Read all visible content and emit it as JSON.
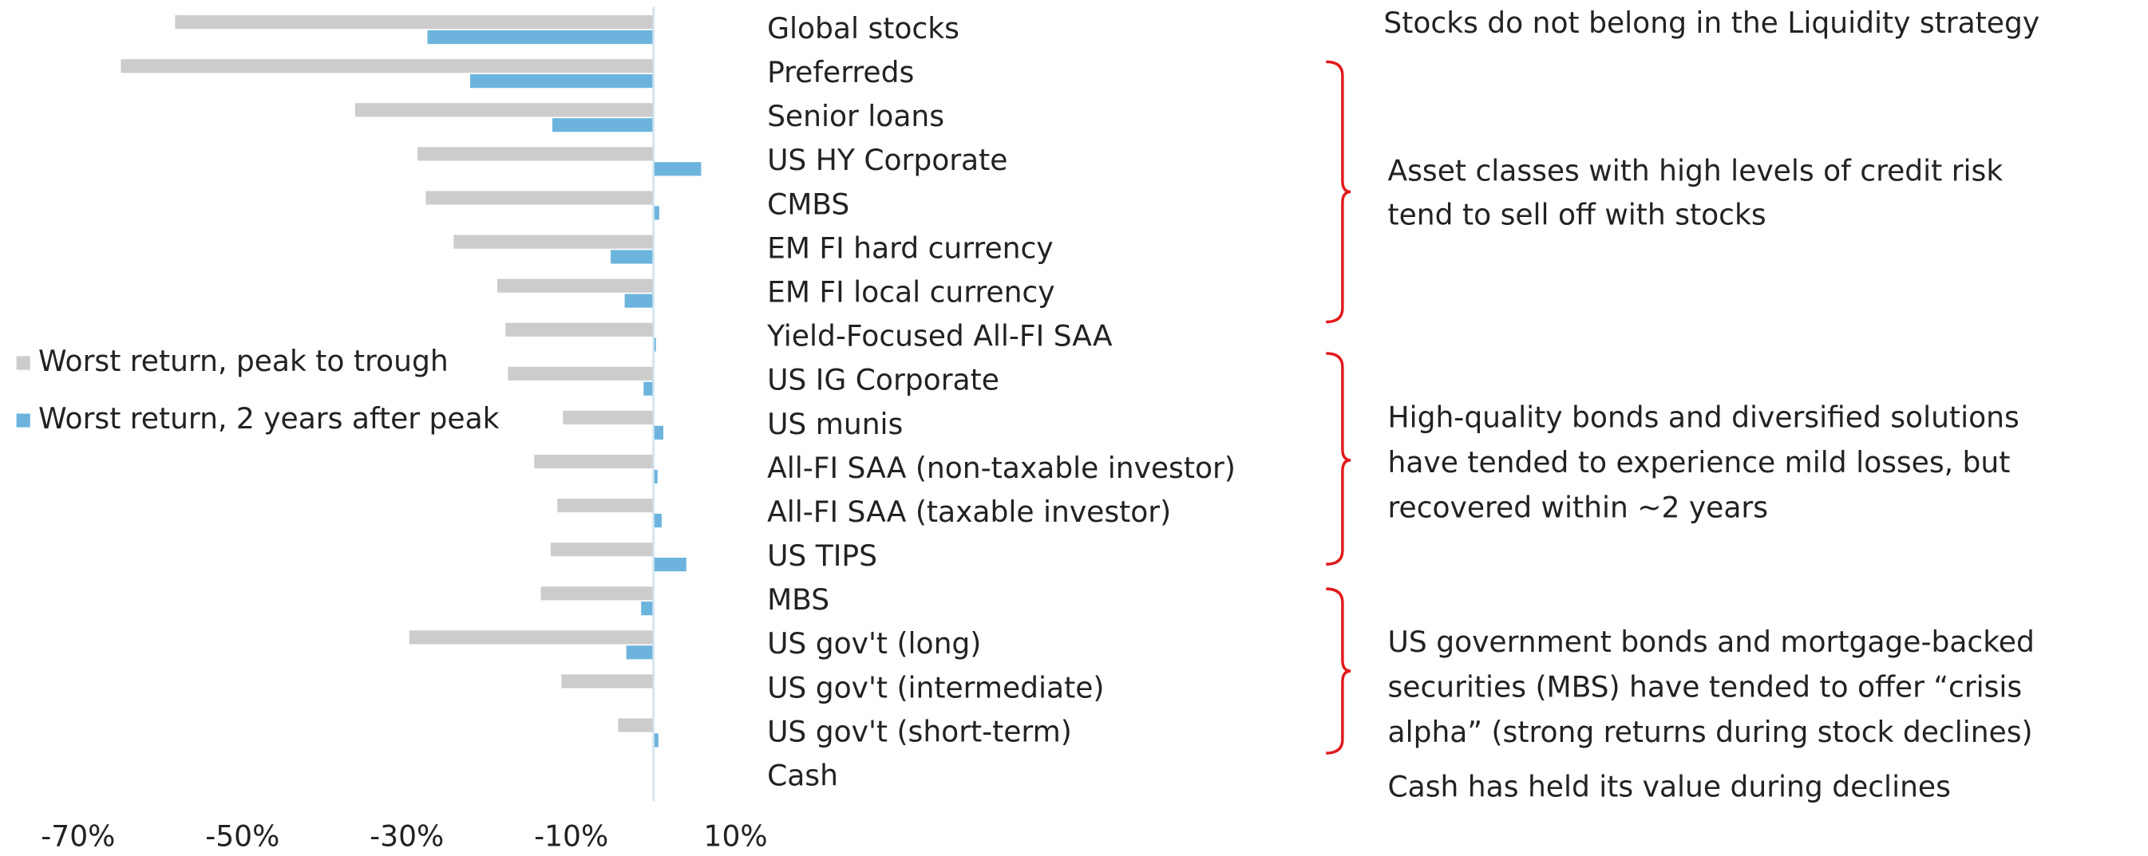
{
  "chart_data": {
    "type": "hbar",
    "categories": [
      "Global stocks",
      "Preferreds",
      "Senior loans",
      "US HY Corporate",
      "CMBS",
      "EM FI hard currency",
      "EM FI local currency",
      "Yield-Focused All-FI SAA",
      "US IG Corporate",
      "US munis",
      "All-FI SAA (non-taxable investor)",
      "All-FI SAA (taxable investor)",
      "US TIPS",
      "MBS",
      "US gov't (long)",
      "US gov't (intermediate)",
      "US gov't (short-term)",
      "Cash"
    ],
    "series": [
      {
        "name": "Worst return, peak to trough",
        "color": "#cccccc",
        "values": [
          -58.2,
          -64.8,
          -36.3,
          -28.7,
          -27.7,
          -24.3,
          -19,
          -18,
          -17.7,
          -11,
          -14.5,
          -11.7,
          -12.5,
          -13.7,
          -29.7,
          -11.2,
          -4.3,
          0
        ]
      },
      {
        "name": "Worst return, 2 years after peak",
        "color": "#6cb4dd",
        "values": [
          -27.5,
          -22.3,
          -12.3,
          5.8,
          0.7,
          -5.2,
          -3.5,
          0.3,
          -1.2,
          1.2,
          0.5,
          1,
          4,
          -1.5,
          -3.3,
          0,
          0.6,
          0
        ]
      }
    ],
    "xlim": [
      -70,
      10
    ],
    "xticks": [
      {
        "value": -70,
        "label": "-70%"
      },
      {
        "value": -50,
        "label": "-50%"
      },
      {
        "value": -30,
        "label": "-30%"
      },
      {
        "value": -10,
        "label": "-10%"
      },
      {
        "value": 10,
        "label": "10%"
      }
    ],
    "annotations": [
      [
        "Stocks do not belong in the Liquidity strategy"
      ],
      [
        "Asset classes with high levels of credit risk",
        "tend to sell off with stocks"
      ],
      [
        "High-quality bonds and diversified solutions",
        "have tended to experience mild losses, but",
        "recovered within ~2 years"
      ],
      [
        "US government bonds and mortgage-backed",
        "securities (MBS) have tended to offer “crisis",
        "alpha” (strong returns during stock declines)"
      ],
      [
        "Cash has held its value during declines"
      ]
    ]
  }
}
